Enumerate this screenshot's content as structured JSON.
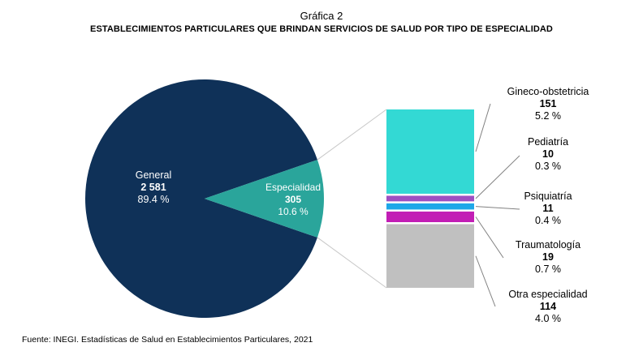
{
  "header": {
    "title": "Gráfica 2",
    "subtitle": "ESTABLECIMIENTOS PARTICULARES QUE BRINDAN SERVICIOS DE SALUD POR TIPO DE ESPECIALIDAD"
  },
  "source": "Fuente: INEGI. Estadísticas de Salud en Establecimientos Particulares, 2021",
  "chart_data": [
    {
      "type": "pie",
      "labels": [
        "General",
        "Especialidad"
      ],
      "values": [
        2581,
        305
      ],
      "value_labels": [
        "2 581",
        "305"
      ],
      "percent_labels": [
        "89.4 %",
        "10.6 %"
      ],
      "colors": [
        "#0f3158",
        "#2aa59b"
      ]
    },
    {
      "type": "bar",
      "stacked": true,
      "categories": [
        "Gineco-obstetricia",
        "Pediatría",
        "Psiquiatría",
        "Traumatología",
        "Otra especialidad"
      ],
      "values": [
        151,
        10,
        11,
        19,
        114
      ],
      "value_labels": [
        "151",
        "10",
        "11",
        "19",
        "114"
      ],
      "percent_labels": [
        "5.2 %",
        "0.3 %",
        "0.4 %",
        "0.7 %",
        "4.0 %"
      ],
      "colors": [
        "#33d9d4",
        "#9e4fc2",
        "#1ea7e8",
        "#c21eb5",
        "#c0c0c0"
      ]
    }
  ]
}
